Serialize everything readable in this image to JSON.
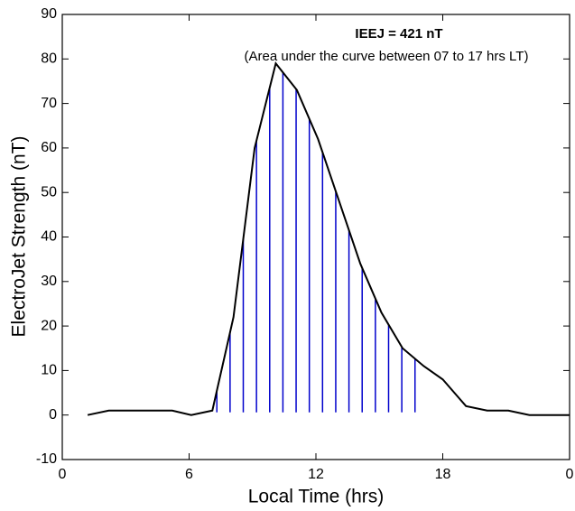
{
  "chart_data": {
    "type": "line",
    "annotations": [
      "IEEJ = 421 nT",
      "(Area under the curve between 07 to 17 hrs LT)"
    ],
    "xlabel": "Local Time (hrs)",
    "ylabel": "ElectroJet Strength (nT)",
    "series": [
      {
        "name": "ElectroJet Strength",
        "color": "#000000",
        "x": [
          1.2,
          2.2,
          3.2,
          4.2,
          5.2,
          6.1,
          7.1,
          8.1,
          9.1,
          10.1,
          11.1,
          12.1,
          13.1,
          14.1,
          15.1,
          16.1,
          17.1,
          18.0,
          19.1,
          20.1,
          21.1,
          22.1,
          23.1,
          24
        ],
        "values": [
          0,
          1,
          1,
          1,
          1,
          0,
          1,
          22,
          60,
          79,
          73,
          62,
          48,
          34,
          23,
          15,
          11,
          8,
          2,
          1,
          1,
          0,
          0,
          0
        ]
      }
    ],
    "fill_between": [
      7,
      17
    ],
    "fill_color": "#0000cc",
    "xlim": [
      0,
      24
    ],
    "xticks": [
      0,
      6,
      12,
      18,
      {
        "value": 24,
        "label": "0"
      }
    ],
    "ylim": [
      -10,
      90
    ],
    "yticks": [
      -10,
      0,
      10,
      20,
      30,
      40,
      50,
      60,
      70,
      80,
      90
    ]
  }
}
